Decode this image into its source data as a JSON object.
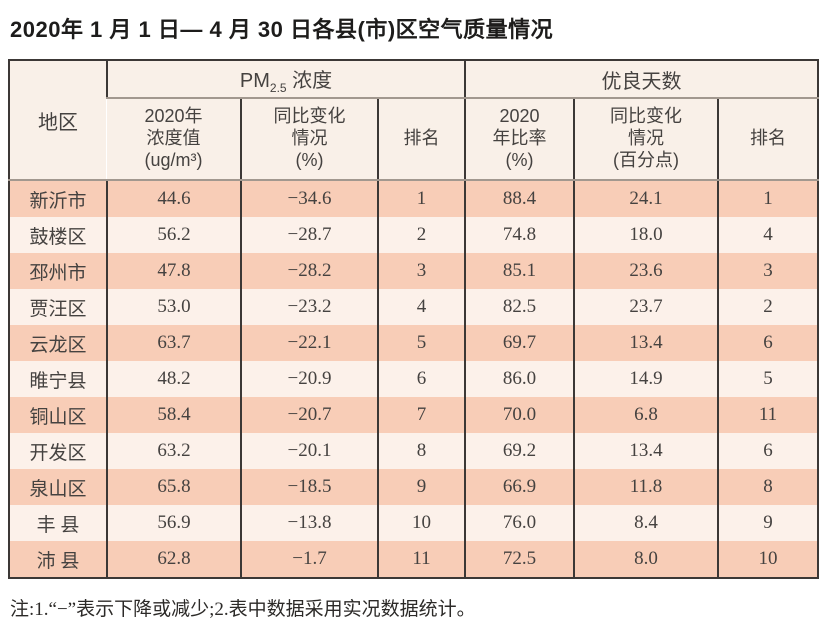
{
  "page": {
    "title": "2020年 1 月 1 日— 4 月 30 日各县(市)区空气质量情况",
    "note": "注:1.“−”表示下降或减少;2.表中数据采用实况数据统计。"
  },
  "table": {
    "region_header": "地区",
    "group_pm": {
      "prefix": "PM",
      "subscript": "2.5",
      "suffix": " 浓度"
    },
    "group_days": "优良天数",
    "subheaders": {
      "pm_value": "2020年\n浓度值\n(ug/m³)",
      "pm_change": "同比变化\n情况\n(%)",
      "pm_rank": "排名",
      "days_ratio": "2020\n年比率\n(%)",
      "days_change": "同比变化\n情况\n(百分点)",
      "days_rank": "排名"
    },
    "rows": [
      [
        "新沂市",
        "44.6",
        "−34.6",
        "1",
        "88.4",
        "24.1",
        "1"
      ],
      [
        "鼓楼区",
        "56.2",
        "−28.7",
        "2",
        "74.8",
        "18.0",
        "4"
      ],
      [
        "邳州市",
        "47.8",
        "−28.2",
        "3",
        "85.1",
        "23.6",
        "3"
      ],
      [
        "贾汪区",
        "53.0",
        "−23.2",
        "4",
        "82.5",
        "23.7",
        "2"
      ],
      [
        "云龙区",
        "63.7",
        "−22.1",
        "5",
        "69.7",
        "13.4",
        "6"
      ],
      [
        "睢宁县",
        "48.2",
        "−20.9",
        "6",
        "86.0",
        "14.9",
        "5"
      ],
      [
        "铜山区",
        "58.4",
        "−20.7",
        "7",
        "70.0",
        "6.8",
        "11"
      ],
      [
        "开发区",
        "63.2",
        "−20.1",
        "8",
        "69.2",
        "13.4",
        "6"
      ],
      [
        "泉山区",
        "65.8",
        "−18.5",
        "9",
        "66.9",
        "11.8",
        "8"
      ],
      [
        "丰 县",
        "56.9",
        "−13.8",
        "10",
        "76.0",
        "8.4",
        "9"
      ],
      [
        "沛 县",
        "62.8",
        "−1.7",
        "11",
        "72.5",
        "8.0",
        "10"
      ]
    ]
  }
}
